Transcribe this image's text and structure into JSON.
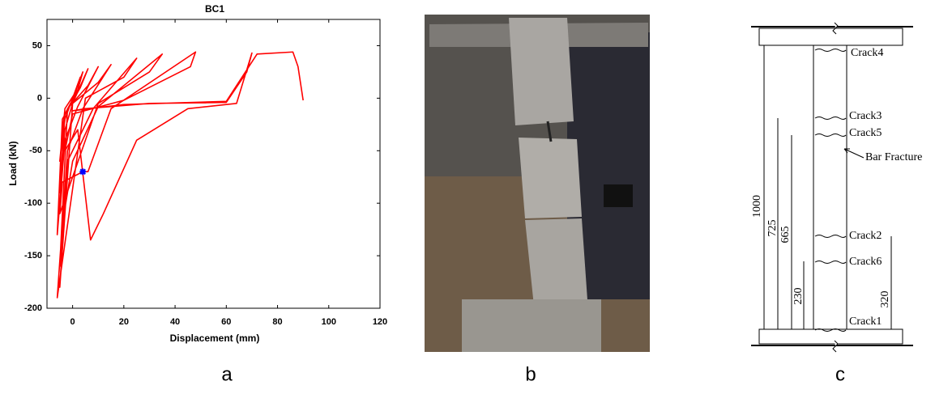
{
  "chart_data": {
    "type": "line",
    "title": "BC1",
    "xlabel": "Displacement (mm)",
    "ylabel": "Load (kN)",
    "xlim": [
      -10,
      120
    ],
    "ylim": [
      -200,
      75
    ],
    "xticks": [
      0,
      20,
      40,
      60,
      80,
      100,
      120
    ],
    "yticks": [
      -200,
      -150,
      -100,
      -50,
      0,
      50
    ],
    "series": [
      {
        "color": "#ff0000",
        "x": [
          0,
          3,
          1,
          -3,
          -5,
          -3,
          0,
          4,
          2,
          -3,
          -5,
          -3,
          0,
          6,
          3,
          -4,
          -6,
          -3,
          2,
          10,
          6,
          -2,
          -5,
          -2,
          4,
          15,
          10,
          0,
          -5,
          -2,
          8,
          25,
          20,
          5,
          -6,
          -4,
          0,
          10,
          35,
          30,
          10,
          -5,
          -4,
          4,
          6,
          15,
          48,
          46,
          20,
          0,
          -3,
          2,
          7,
          12,
          25,
          45,
          64,
          70,
          68,
          60,
          30,
          5,
          0,
          20,
          60,
          72,
          86,
          88,
          90
        ],
        "values": [
          0,
          20,
          5,
          -10,
          -60,
          -20,
          0,
          25,
          8,
          -15,
          -90,
          -30,
          -5,
          28,
          10,
          -20,
          -130,
          -40,
          -8,
          30,
          12,
          -10,
          -160,
          -50,
          -10,
          32,
          15,
          -5,
          -180,
          -60,
          -10,
          38,
          20,
          0,
          -190,
          -120,
          -60,
          -8,
          42,
          25,
          -5,
          -110,
          -80,
          -70,
          -70,
          -10,
          44,
          30,
          -2,
          -15,
          -50,
          -30,
          -135,
          -110,
          -40,
          -10,
          -5,
          43,
          25,
          -4,
          -5,
          -10,
          -12,
          -6,
          -3,
          42,
          44,
          30,
          -2
        ]
      }
    ],
    "markers": {
      "x": [
        4
      ],
      "values": [
        -70
      ],
      "color": "#0000ff"
    }
  },
  "photo": {
    "label": "b"
  },
  "diagram": {
    "label": "c",
    "cracks": [
      "Crack4",
      "Crack3",
      "Crack5",
      "Crack2",
      "Crack6",
      "Crack1"
    ],
    "annotation": "Bar Fracture",
    "dimensions": [
      "1000",
      "725",
      "665",
      "230",
      "320"
    ]
  },
  "panel_label": "a"
}
